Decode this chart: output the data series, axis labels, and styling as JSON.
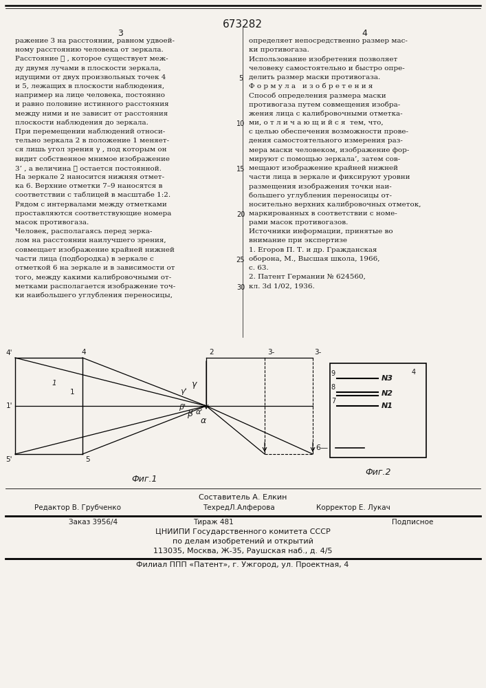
{
  "title": "673282",
  "bg_color": "#f5f2ed",
  "text_color": "#1a1a1a",
  "left_col_lines": [
    "ражение 3 на расстоянии, равном удвоей-",
    "ному расстоянию человека от зеркала.",
    "Расстояние ℓ , которое существует меж-",
    "ду двумя лучами в плоскости зеркала,",
    "идущими от двух произвольных точек 4",
    "и 5, лежащих в плоскости наблюдения,",
    "например на лице человека, постоянно",
    "и равно половине истинного расстояния",
    "между ними и не зависит от расстояния",
    "плоскости наблюдения до зеркала.",
    "При перемещении наблюдений относи-",
    "тельно зеркала 2 в положение 1 меняет-",
    "ся лишь угол зрения γ , под которым он",
    "видит собственное мнимое изображение",
    "3’ , а величина ℓ остается постоянной.",
    "На зеркале 2 наносится нижняя отмет-",
    "ка 6. Верхние отметки 7–9 наносятся в",
    "соответствии с таблицей в масштабе 1:2.",
    "Рядом с интервалами между отметками",
    "проставляются соответствующие номера",
    "масок противогаза.",
    "Человек, располагаясь перед зерка-",
    "лом на расстоянии наилучшего зрения,",
    "совмещает изображение крайней нижней",
    "части лица (подбородка) в зеркале с",
    "отметкой 6 на зеркале и в зависимости от",
    "того, между какими калибровочными от-",
    "метками располагается изображение точ-",
    "ки наибольшего углубления переносицы,"
  ],
  "right_col_lines": [
    "определяет непосредственно размер мас-",
    "ки противогаза.",
    "Использование изобретения позволяет",
    "человеку самостоятельно и быстро опре-",
    "делить размер маски противогаза.",
    "Ф о р м у л а   и з о б р е т е н и я",
    "Способ определения размера маски",
    "противогаза путем совмещения изобра-",
    "жения лица с калибровочными отметка-",
    "ми, о т л и ч а ю щ и й с я  тем, что,",
    "с целью обеспечения возможности прове-",
    "дения самостоятельного измерения раз-",
    "мера маски человеком, изображение фор-",
    "мируют с помощью зеркала’, затем сов-",
    "мещают изображение крайней нижней",
    "части лица в зеркале и фиксируют уровни",
    "размещения изображения точки наи-",
    "большего углубления переносицы от-",
    "носительно верхних калибровочных отметок,",
    "маркированных в соответствии с номе-",
    "рами масок противогазов.",
    "Источники информации, принятые во",
    "внимание при экспертизе",
    "1. Егоров П. Т. и др. Гражданская",
    "оборона, М., Высшая школа, 1966,",
    "с. 63.",
    "2. Патент Германии № 624560,",
    "кл. 3d 1/02, 1936."
  ],
  "fig1_label": "Фиг.1",
  "fig2_label": "Фиг.2",
  "footer_composer": "Составитель А. Елкин",
  "footer_editor": "Редактор В. Грубченко",
  "footer_tech": "ТехредЛ.Алферова",
  "footer_corrector": "Корректор Е. Лукач",
  "footer_order": "Заказ 3956/4",
  "footer_circulation": "Тираж 481",
  "footer_subscription": "Подписное",
  "footer_org": "ЦНИИПИ Государственного комитета СССР",
  "footer_dept": "по делам изобретений и открытий",
  "footer_addr": "113035, Москва, Ж-35, Раушская наб., д. 4/5",
  "footer_branch": "Филиал ППП «Патент», г. Ужгород, ул. Проектная, 4"
}
